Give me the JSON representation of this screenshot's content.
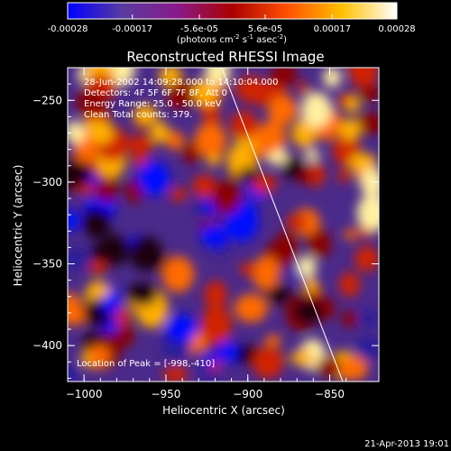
{
  "colorbar": {
    "ticks": [
      "-0.00028",
      "-0.00017",
      "-5.6e-05",
      "5.6e-05",
      "0.00017",
      "0.00028"
    ],
    "tick_values": [
      -0.00028,
      -0.00017,
      -5.6e-05,
      5.6e-05,
      0.00017,
      0.00028
    ],
    "unit_base": "(photons cm",
    "unit_sup1": "-2",
    "unit_mid": " s",
    "unit_sup2": "-1",
    "unit_mid2": " asec",
    "unit_sup3": "-2",
    "unit_end": ")",
    "range": [
      -0.00028,
      0.00028
    ],
    "colormap": [
      "#0000ff",
      "#5a3aa0",
      "#8a1a8a",
      "#aa0000",
      "#ff5000",
      "#ffc000",
      "#ffffff"
    ]
  },
  "chart_data": {
    "type": "heatmap",
    "title": "Reconstructed RHESSI Image",
    "xlabel": "Heliocentric X (arcsec)",
    "ylabel": "Heliocentric Y (arcsec)",
    "xlim": [
      -1010,
      -820
    ],
    "ylim": [
      -422,
      -230
    ],
    "x_ticks": [
      -1000,
      -950,
      -900,
      -850
    ],
    "x_tick_labels": [
      "−1000",
      "−950",
      "−900",
      "−850"
    ],
    "y_ticks": [
      -250,
      -300,
      -350,
      -400
    ],
    "y_tick_labels": [
      "−250",
      "−300",
      "−350",
      "−400"
    ],
    "annotations": [
      "28-Jun-2002 14:09:28.000 to 14:10:04.000",
      "Detectors: 4F 5F 6F 7F 8F, Att 0",
      "Energy Range: 25.0 - 50.0 keV",
      "Clean    Total counts: 379."
    ],
    "peak_label": "Location of Peak = [-998,-410]",
    "peak": [
      -998,
      -410
    ],
    "limb_line": [
      [
        -916,
        -230
      ],
      [
        -842,
        -422
      ]
    ],
    "grid": false,
    "colorbar": "top"
  },
  "footer": {
    "timestamp": "21-Apr-2013 19:01"
  }
}
